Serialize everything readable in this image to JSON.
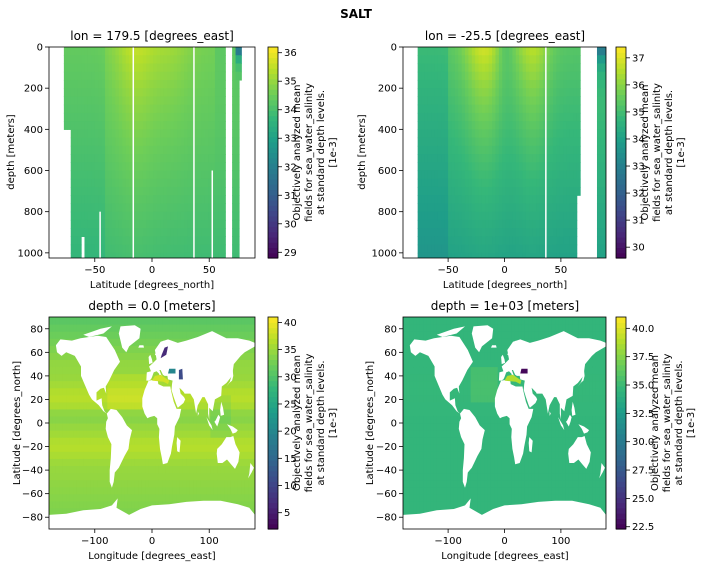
{
  "suptitle": "SALT",
  "colors": {
    "viridis": [
      "#440154",
      "#482878",
      "#3e4989",
      "#31688e",
      "#26828e",
      "#1f9e89",
      "#35b779",
      "#6ece58",
      "#b5de2b",
      "#fde725"
    ],
    "land": "#ffffff",
    "axis": "#000000"
  },
  "chart_data": [
    {
      "type": "heatmap",
      "panel": "top-left",
      "title": "lon = 179.5 [degrees_east]",
      "xlabel": "Latitude [degrees_north]",
      "ylabel": "depth [meters]",
      "xlim": [
        -90,
        90
      ],
      "ylim": [
        1025,
        0
      ],
      "y_inverted": true,
      "xticks": [
        -50,
        0,
        50
      ],
      "yticks": [
        0,
        200,
        400,
        600,
        800,
        1000
      ],
      "data_lat_range": [
        -77,
        78
      ],
      "colorbar": {
        "label": [
          "Objectively analyzed mean",
          "fields for sea_water_salinity",
          "at standard depth levels.",
          "[1e-3]"
        ],
        "vmin": 28.8,
        "vmax": 36.2,
        "ticks": [
          29,
          30,
          31,
          32,
          33,
          34,
          35,
          36
        ]
      }
    },
    {
      "type": "heatmap",
      "panel": "top-right",
      "title": "lon = -25.5 [degrees_east]",
      "xlabel": "Latitude [degrees_north]",
      "ylabel": "depth [meters]",
      "xlim": [
        -90,
        90
      ],
      "ylim": [
        1025,
        0
      ],
      "y_inverted": true,
      "xticks": [
        -50,
        0,
        50
      ],
      "yticks": [
        0,
        200,
        400,
        600,
        800,
        1000
      ],
      "data_lat_range": [
        -77,
        90
      ],
      "colorbar": {
        "label": [
          "Objectively analyzed mean",
          "fields for sea_water_salinity",
          "at standard depth levels.",
          "[1e-3]"
        ],
        "vmin": 29.6,
        "vmax": 37.4,
        "ticks": [
          30,
          31,
          32,
          33,
          34,
          35,
          36,
          37
        ]
      }
    },
    {
      "type": "heatmap",
      "panel": "bottom-left",
      "title": "depth = 0.0 [meters]",
      "xlabel": "Longitude [degrees_east]",
      "ylabel": "Latitude [degrees_north]",
      "xlim": [
        -180,
        180
      ],
      "ylim": [
        -90,
        90
      ],
      "xticks": [
        -100,
        0,
        100
      ],
      "yticks": [
        -80,
        -60,
        -40,
        -20,
        0,
        20,
        40,
        60,
        80
      ],
      "colorbar": {
        "label": [
          "Objectively analyzed mean",
          "fields for sea_water_salinity",
          "at standard depth levels.",
          "[1e-3]"
        ],
        "vmin": 2,
        "vmax": 41,
        "ticks": [
          5,
          10,
          15,
          20,
          25,
          30,
          35,
          40
        ]
      }
    },
    {
      "type": "heatmap",
      "panel": "bottom-right",
      "title": "depth = 1e+03 [meters]",
      "xlabel": "Longitude [degrees_east]",
      "ylabel": "Latitude [degrees_north]",
      "xlim": [
        -180,
        180
      ],
      "ylim": [
        -90,
        90
      ],
      "xticks": [
        -100,
        0,
        100
      ],
      "yticks": [
        -80,
        -60,
        -40,
        -20,
        0,
        20,
        40,
        60,
        80
      ],
      "colorbar": {
        "label": [
          "Objectively analyzed mean",
          "fields for sea_water_salinity",
          "at standard depth levels.",
          "[1e-3]"
        ],
        "vmin": 22.3,
        "vmax": 41.0,
        "ticks": [
          "22.5",
          "25.0",
          "27.5",
          "30.0",
          "32.5",
          "35.0",
          "37.5",
          "40.0"
        ]
      }
    }
  ]
}
